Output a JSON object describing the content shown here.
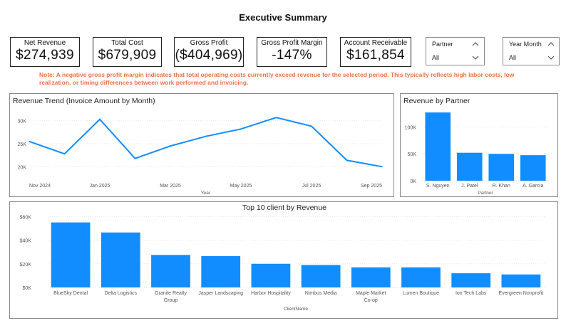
{
  "page_title": "Executive Summary",
  "kpis": [
    {
      "label": "Net Revenue",
      "value": "$274,939"
    },
    {
      "label": "Total Cost",
      "value": "$679,909"
    },
    {
      "label": "Gross Profit",
      "value": "($404,969)"
    },
    {
      "label": "Gross Profit Margin",
      "value": "-147%"
    },
    {
      "label": "Account Receivable",
      "value": "$161,854"
    }
  ],
  "slicers": {
    "partner": {
      "label": "Partner",
      "value": "All"
    },
    "year_month": {
      "label": "Year Month",
      "value": "All"
    }
  },
  "note": "Note: A negative gross profit margin indicates that total operating costs currently exceed revenue for the selected period. This typically reflects high labor costs, low realization, or timing differences between work performed and invoicing.",
  "colors": {
    "bar": "#118dff",
    "line": "#118dff",
    "note": "#e8744a",
    "border": "#222222"
  },
  "chart_data": [
    {
      "type": "line",
      "title": "Revenue Trend (Invoice Amount by Month)",
      "xlabel": "Year",
      "ylabel": "",
      "x": [
        "Nov 2024",
        "Dec 2024",
        "Jan 2025",
        "Feb 2025",
        "Mar 2025",
        "Apr 2025",
        "May 2025",
        "Jun 2025",
        "Jul 2025",
        "Aug 2025",
        "Sep 2025"
      ],
      "x_tick_labels": [
        "Nov 2024",
        "Jan 2025",
        "Mar 2025",
        "May 2025",
        "Jul 2025",
        "Sep 2025"
      ],
      "values": [
        25500,
        22800,
        30300,
        21800,
        24500,
        26600,
        28200,
        30700,
        28800,
        21400,
        20000
      ],
      "y_ticks": [
        "20K",
        "25K",
        "30K"
      ],
      "y_tick_values": [
        20000,
        25000,
        30000
      ],
      "ylim": [
        18500,
        31500
      ],
      "grid": true
    },
    {
      "type": "bar",
      "title": "Revenue by Partner",
      "xlabel": "Partner",
      "ylabel": "",
      "categories": [
        "S. Nguyen",
        "J. Patel",
        "R. Khan",
        "A. Garcia"
      ],
      "values": [
        127000,
        52000,
        50000,
        47500
      ],
      "y_ticks": [
        "0K",
        "50K",
        "100K"
      ],
      "y_tick_values": [
        0,
        50000,
        100000
      ],
      "ylim": [
        0,
        135000
      ],
      "grid": true
    },
    {
      "type": "bar",
      "title": "Top 10 client by Revenue",
      "xlabel": "ClientName",
      "ylabel": "",
      "categories": [
        "BlueSky Dental",
        "Delta Logistics",
        "Granite Realty Group",
        "Jasper Landscaping",
        "Harbor Hospitality",
        "Nimbus Media",
        "Maple Market Co-op",
        "Lumen Boutique",
        "Ion Tech Labs",
        "Evergreen Nonprofit"
      ],
      "category_lines": [
        [
          "BlueSky Dental"
        ],
        [
          "Delta Logistics"
        ],
        [
          "Granite Realty",
          "Group"
        ],
        [
          "Jasper Landscaping"
        ],
        [
          "Harbor Hospitality"
        ],
        [
          "Nimbus Media"
        ],
        [
          "Maple Market",
          "Co-op"
        ],
        [
          "Lumen Boutique"
        ],
        [
          "Ion Tech Labs"
        ],
        [
          "Evergreen Nonprofit"
        ]
      ],
      "values": [
        55000,
        46500,
        27500,
        26500,
        20000,
        19000,
        17000,
        17000,
        12000,
        11000
      ],
      "y_ticks": [
        "$0K",
        "$20K",
        "$40K",
        "$60K"
      ],
      "y_tick_values": [
        0,
        20000,
        40000,
        60000
      ],
      "ylim": [
        0,
        62000
      ],
      "grid": true
    }
  ]
}
